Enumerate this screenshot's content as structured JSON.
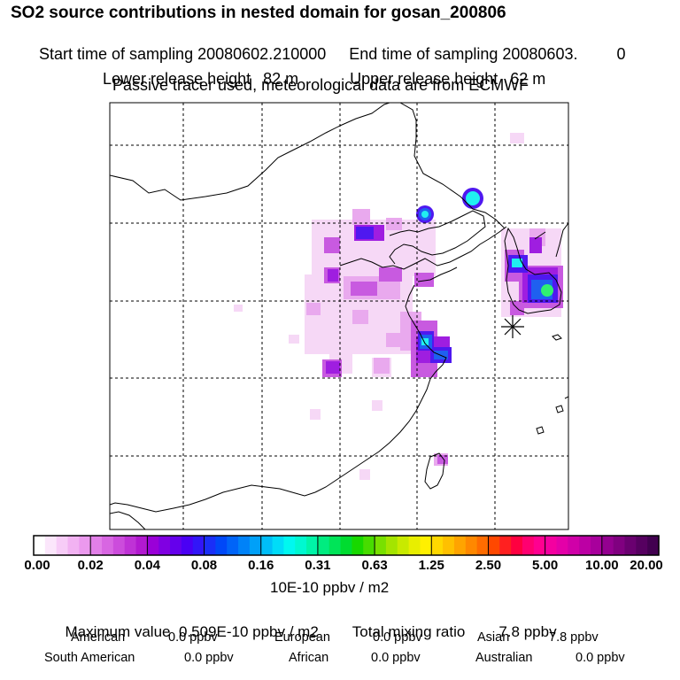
{
  "header": {
    "title": "SO2 source contributions in nested domain for gosan_200806",
    "start_label": "Start time of sampling",
    "start_value": "20080602.210000",
    "end_label": "End time of sampling",
    "end_value": "20080603.",
    "end_suffix": "0",
    "lower_label": "Lower release height",
    "lower_value": "82 m",
    "upper_label": "Upper release height",
    "upper_value": "62 m",
    "subtitle": "Passive tracer used, meteorological data are from ECMWF"
  },
  "colorbar": {
    "ticks": [
      "0.00",
      "0.02",
      "0.04",
      "0.08",
      "0.16",
      "0.31",
      "0.63",
      "1.25",
      "2.50",
      "5.00",
      "10.00",
      "20.00"
    ],
    "units": "10E-10 ppbv / m2",
    "colors": [
      "#ffffff",
      "#fbe6fb",
      "#f7ccf7",
      "#f2b2f2",
      "#eb99ee",
      "#e27fe8",
      "#d866e2",
      "#cc4cdc",
      "#bf32d6",
      "#b219d0",
      "#9a00d8",
      "#8000e2",
      "#6500ec",
      "#4a00f4",
      "#3216f8",
      "#1a2ff8",
      "#0048f8",
      "#0064f8",
      "#0082f8",
      "#00a0f8",
      "#00bef8",
      "#00dcf8",
      "#00f8f0",
      "#00f8d0",
      "#00f4a8",
      "#00ec80",
      "#00e458",
      "#00dc30",
      "#18d800",
      "#48dc00",
      "#78e000",
      "#a4e400",
      "#c8ea00",
      "#e8ee00",
      "#fff000",
      "#ffd800",
      "#ffc000",
      "#ffa400",
      "#ff8800",
      "#ff6c00",
      "#ff4800",
      "#ff2020",
      "#ff0040",
      "#ff0070",
      "#ff0090",
      "#f400a0",
      "#e400a8",
      "#d000a8",
      "#bc00a4",
      "#a8009c",
      "#940090",
      "#800080",
      "#6a0070",
      "#560060",
      "#420050"
    ]
  },
  "stats": {
    "max_label": "Maximum value",
    "max_value": "0.509E-10 ppbv / m2",
    "total_label": "Total mixing ratio",
    "total_value": "7.8 ppbv",
    "regions": [
      {
        "name": "American",
        "value": "0.0 ppbv"
      },
      {
        "name": "European",
        "value": "0.0 ppbv"
      },
      {
        "name": "Asian",
        "value": "7.8 ppbv"
      },
      {
        "name": "South American",
        "value": "0.0 ppbv"
      },
      {
        "name": "African",
        "value": "0.0 ppbv"
      },
      {
        "name": "Australian",
        "value": "0.0 ppbv"
      }
    ]
  },
  "map": {
    "receptor_marker": "receptor-star",
    "source_level_colors": [
      "#f6d6f6",
      "#e9a9ee",
      "#c85ae0",
      "#9f1ee0",
      "#4f18f0",
      "#1f60f0",
      "#20a8f8",
      "#20f0f0",
      "#30f070"
    ]
  }
}
